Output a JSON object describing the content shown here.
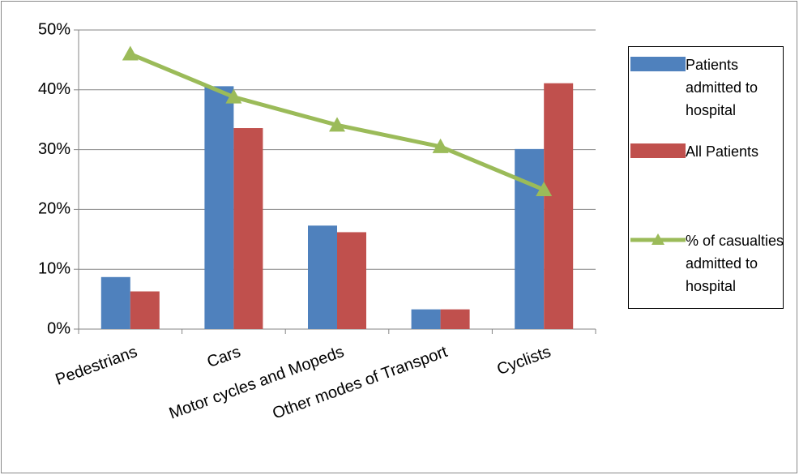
{
  "chart_data": {
    "type": "bar",
    "categories": [
      "Pedestrians",
      "Cars",
      "Motor cycles and Mopeds",
      "Other modes of Transport",
      "Cyclists"
    ],
    "series": [
      {
        "name": "Patients admitted to hospital",
        "color": "#4f81bd",
        "values": [
          8.7,
          40.6,
          17.3,
          3.3,
          30.1
        ]
      },
      {
        "name": "All Patients",
        "color": "#c0504d",
        "values": [
          6.3,
          33.6,
          16.2,
          3.3,
          41.1
        ]
      },
      {
        "name": "% of casualties admitted to hospital",
        "color": "#9bbb59",
        "type": "line",
        "values": [
          46,
          38.8,
          34.1,
          30.5,
          23.3
        ]
      }
    ],
    "ylim": [
      0,
      50
    ],
    "yticks": [
      {
        "value": 0,
        "label": "0%"
      },
      {
        "value": 10,
        "label": "10%"
      },
      {
        "value": 20,
        "label": "20%"
      },
      {
        "value": 30,
        "label": "30%"
      },
      {
        "value": 40,
        "label": "40%"
      },
      {
        "value": 50,
        "label": "50%"
      }
    ],
    "grid": true,
    "legend": "right"
  }
}
